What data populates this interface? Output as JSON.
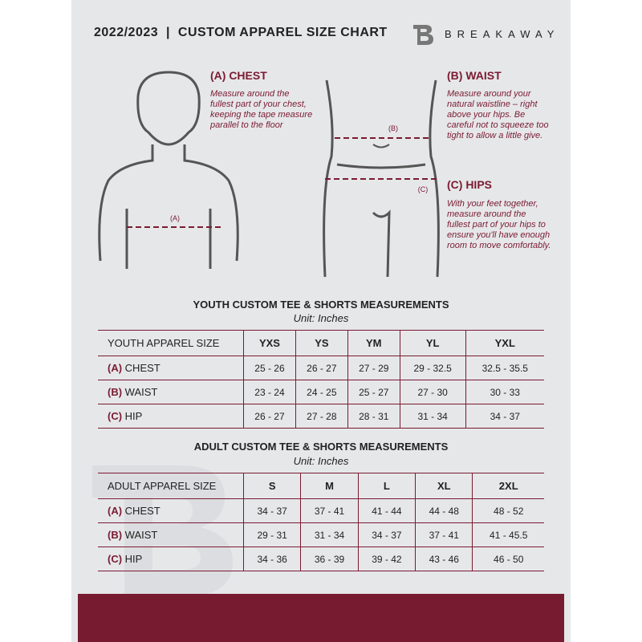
{
  "header": {
    "title": "2022/2023  |  CUSTOM APPAREL SIZE CHART",
    "brand": "BREAKAWAY"
  },
  "colors": {
    "accent": "#7a1b32",
    "background": "#e6e7e9"
  },
  "measures": {
    "chest": {
      "label": "(A) CHEST",
      "marker": "(A)",
      "desc": "Measure around the fullest part of your chest, keeping the tape measure parallel to the floor"
    },
    "waist": {
      "label": "(B) WAIST",
      "marker": "(B)",
      "desc": "Measure around your natural waistline – right above your hips. Be careful not to squeeze too tight to allow a little give."
    },
    "hips": {
      "label": "(C) HIPS",
      "marker": "(C)",
      "desc": "With your feet together, measure around the fullest part of your hips to ensure you'll have enough room to move comfortably."
    }
  },
  "youth": {
    "title": "YOUTH CUSTOM TEE & SHORTS MEASUREMENTS",
    "unit": "Unit: Inches",
    "header": "YOUTH APPAREL SIZE",
    "sizes": [
      "YXS",
      "YS",
      "YM",
      "YL",
      "YXL"
    ],
    "rows": [
      {
        "mark": "(A)",
        "name": "CHEST",
        "values": [
          "25 - 26",
          "26 - 27",
          "27 - 29",
          "29 - 32.5",
          "32.5 - 35.5"
        ]
      },
      {
        "mark": "(B)",
        "name": "WAIST",
        "values": [
          "23 - 24",
          "24 - 25",
          "25 - 27",
          "27 - 30",
          "30 - 33"
        ]
      },
      {
        "mark": "(C)",
        "name": "HIP",
        "values": [
          "26 - 27",
          "27 - 28",
          "28 - 31",
          "31 - 34",
          "34 - 37"
        ]
      }
    ]
  },
  "adult": {
    "title": "ADULT CUSTOM TEE & SHORTS MEASUREMENTS",
    "unit": "Unit: Inches",
    "header": "ADULT APPAREL SIZE",
    "sizes": [
      "S",
      "M",
      "L",
      "XL",
      "2XL"
    ],
    "rows": [
      {
        "mark": "(A)",
        "name": "CHEST",
        "values": [
          "34 - 37",
          "37 - 41",
          "41 - 44",
          "44 - 48",
          "48 - 52"
        ]
      },
      {
        "mark": "(B)",
        "name": "WAIST",
        "values": [
          "29 - 31",
          "31 - 34",
          "34 - 37",
          "37 - 41",
          "41 - 45.5"
        ]
      },
      {
        "mark": "(C)",
        "name": "HIP",
        "values": [
          "34 - 36",
          "36 - 39",
          "39 - 42",
          "43 - 46",
          "46 - 50"
        ]
      }
    ]
  }
}
